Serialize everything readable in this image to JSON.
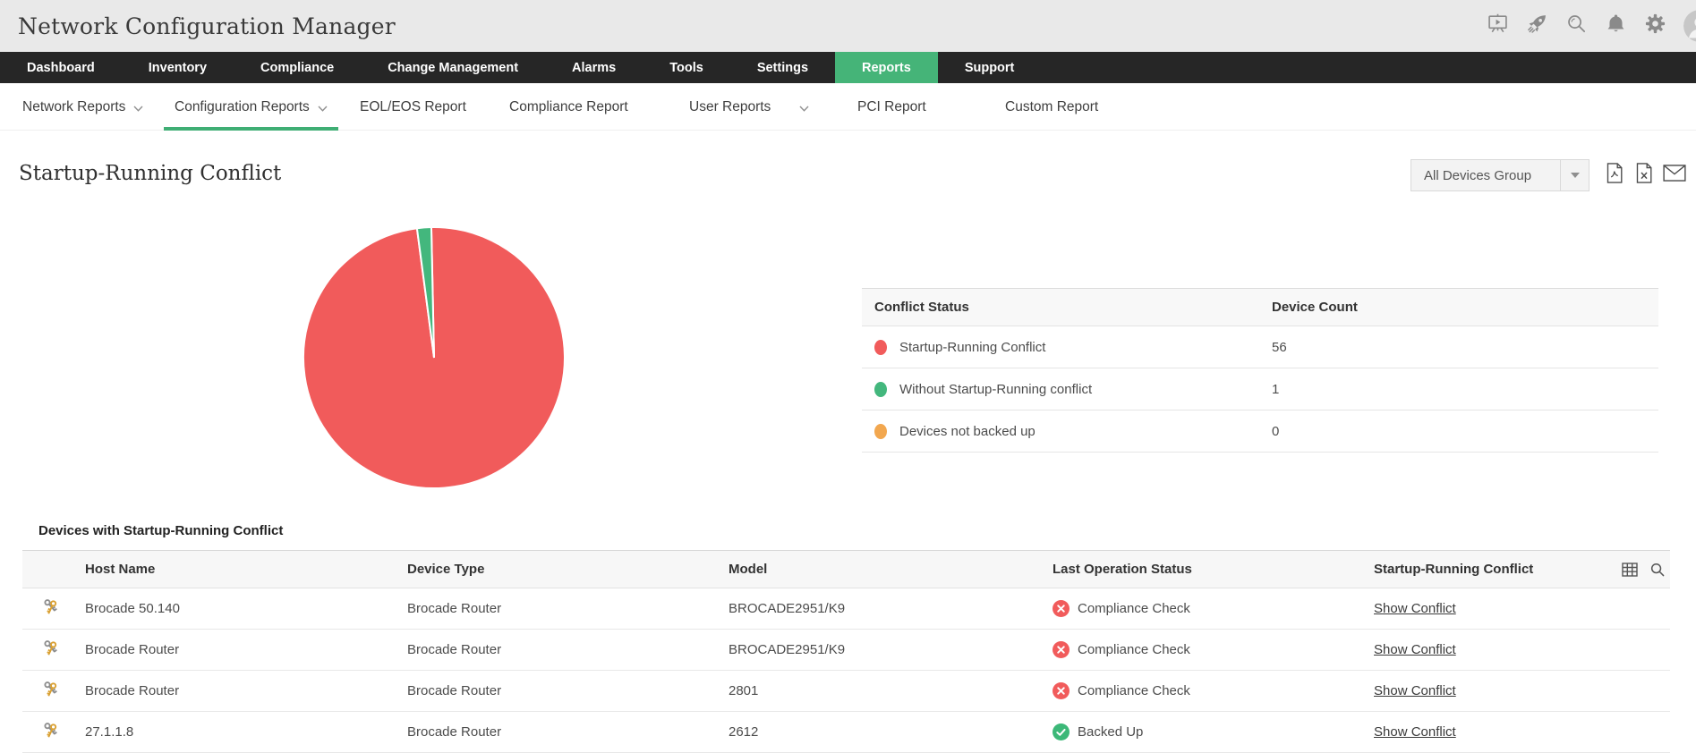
{
  "app": {
    "title": "Network Configuration Manager"
  },
  "topbar": {
    "icons": [
      "presentation-play",
      "rocket",
      "search",
      "notifications",
      "settings",
      "user-avatar"
    ]
  },
  "nav": {
    "active_bg": "#45b478",
    "items": [
      {
        "label": "Dashboard",
        "active": false
      },
      {
        "label": "Inventory",
        "active": false
      },
      {
        "label": "Compliance",
        "active": false
      },
      {
        "label": "Change Management",
        "active": false
      },
      {
        "label": "Alarms",
        "active": false
      },
      {
        "label": "Tools",
        "active": false
      },
      {
        "label": "Settings",
        "active": false
      },
      {
        "label": "Reports",
        "active": true
      },
      {
        "label": "Support",
        "active": false
      }
    ]
  },
  "subnav": {
    "active_underline": "#3fae74",
    "items": [
      {
        "label": "Network Reports",
        "dropdown": true,
        "active": false
      },
      {
        "label": "Configuration Reports",
        "dropdown": true,
        "active": true
      },
      {
        "label": "EOL/EOS Report",
        "dropdown": false,
        "active": false
      },
      {
        "label": "Compliance Report",
        "dropdown": false,
        "active": false
      },
      {
        "label": "User Reports",
        "dropdown": true,
        "active": false
      },
      {
        "label": "PCI Report",
        "dropdown": false,
        "active": false
      },
      {
        "label": "Custom Report",
        "dropdown": false,
        "active": false
      }
    ]
  },
  "report": {
    "title": "Startup-Running Conflict",
    "device_group_selector": {
      "value": "All Devices Group"
    },
    "export_icons": [
      "pdf-export",
      "excel-export",
      "email-report"
    ]
  },
  "chart_data": {
    "type": "pie",
    "categories": [
      "Startup-Running Conflict",
      "Without Startup-Running conflict",
      "Devices not backed up"
    ],
    "values": [
      56,
      1,
      0
    ],
    "colors": [
      "#f15b5b",
      "#43b77d",
      "#f2a74f"
    ],
    "start_angle_deg": -1.2,
    "legend_position": "right-table"
  },
  "summary_table": {
    "columns": [
      "Conflict Status",
      "Device Count"
    ],
    "rows": [
      {
        "label": "Startup-Running Conflict",
        "count": "56",
        "color": "#f15b5b"
      },
      {
        "label": "Without Startup-Running conflict",
        "count": "1",
        "color": "#43b77d"
      },
      {
        "label": "Devices not backed up",
        "count": "0",
        "color": "#f2a74f"
      }
    ]
  },
  "devices_table": {
    "title": "Devices with Startup-Running Conflict",
    "columns": [
      "Host Name",
      "Device Type",
      "Model",
      "Last Operation Status",
      "Startup-Running Conflict"
    ],
    "status_colors": {
      "error": "#f15b5b",
      "success": "#3cb878"
    },
    "rows": [
      {
        "host": "Brocade 50.140",
        "device_type": "Brocade Router",
        "model": "BROCADE2951/K9",
        "status": "Compliance Check",
        "status_kind": "error",
        "conflict": "Show Conflict"
      },
      {
        "host": "Brocade Router",
        "device_type": "Brocade Router",
        "model": "BROCADE2951/K9",
        "status": "Compliance Check",
        "status_kind": "error",
        "conflict": "Show Conflict"
      },
      {
        "host": "Brocade Router",
        "device_type": "Brocade Router",
        "model": "2801",
        "status": "Compliance Check",
        "status_kind": "error",
        "conflict": "Show Conflict"
      },
      {
        "host": "27.1.1.8",
        "device_type": "Brocade Router",
        "model": "2612",
        "status": "Backed Up",
        "status_kind": "success",
        "conflict": "Show Conflict"
      }
    ]
  }
}
